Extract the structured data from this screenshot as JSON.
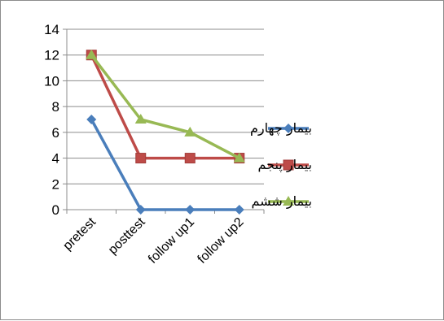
{
  "chart_data": {
    "type": "line",
    "categories": [
      "pretest",
      "posttest",
      "follow up1",
      "follow up2"
    ],
    "y_ticks": [
      "0",
      "2",
      "4",
      "6",
      "8",
      "10",
      "12",
      "14"
    ],
    "ylim": [
      0,
      14
    ],
    "grid": true,
    "legend_position": "right",
    "series": [
      {
        "name": "بیمار چهارم",
        "values": [
          7,
          0,
          0,
          0
        ],
        "color": "#4a7ebb",
        "marker": "diamond"
      },
      {
        "name": "بیمار پنجم",
        "values": [
          12,
          4,
          4,
          4
        ],
        "color": "#be4b48",
        "marker": "square"
      },
      {
        "name": "بیمار ششم",
        "values": [
          12,
          7,
          6,
          4
        ],
        "color": "#98b954",
        "marker": "triangle"
      }
    ]
  }
}
